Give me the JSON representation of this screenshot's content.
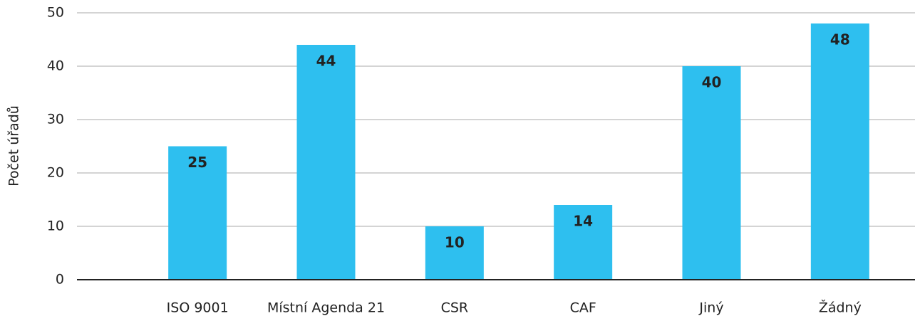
{
  "chart_data": {
    "type": "bar",
    "ylabel": "Počet úřadů",
    "categories": [
      "ISO 9001",
      "Místní Agenda 21",
      "CSR",
      "CAF",
      "Jiný",
      "Žádný"
    ],
    "values": [
      25,
      44,
      10,
      14,
      40,
      48
    ],
    "color": "#2ebfef",
    "ylim": [
      0,
      50
    ],
    "yticks": [
      0,
      10,
      20,
      30,
      40,
      50
    ],
    "grid": true
  }
}
